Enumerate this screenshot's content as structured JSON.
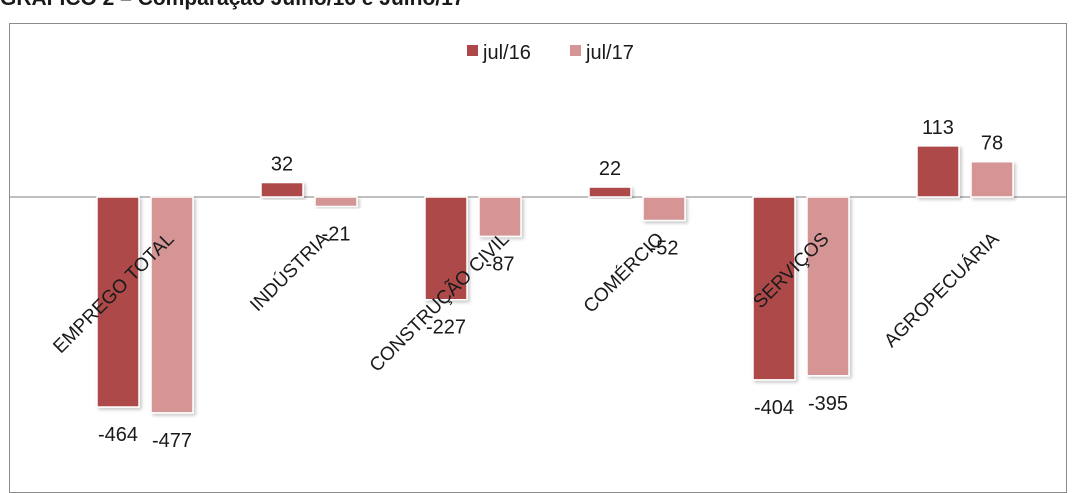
{
  "title": "GRÁFICO 2 – Comparação Julho/16 e Julho/17",
  "colors": {
    "jul16": "#ae4848",
    "jul17": "#d69595",
    "axis": "#9a9a9a"
  },
  "chart_data": {
    "type": "bar",
    "title": "GRÁFICO 2 – Comparação Julho/16 e Julho/17",
    "categories": [
      "EMPREGO TOTAL",
      "INDÚSTRIA",
      "CONSTRUÇÃO CIVIL",
      "COMÉRCIO",
      "SERVIÇOS",
      "AGROPECUÁRIA"
    ],
    "series": [
      {
        "name": "jul/16",
        "values": [
          -464,
          32,
          -227,
          22,
          -404,
          113
        ]
      },
      {
        "name": "jul/17",
        "values": [
          -477,
          -21,
          -87,
          -52,
          -395,
          78
        ]
      }
    ],
    "legend": "top-center",
    "grid": false,
    "xlabel": "",
    "ylabel": ""
  }
}
